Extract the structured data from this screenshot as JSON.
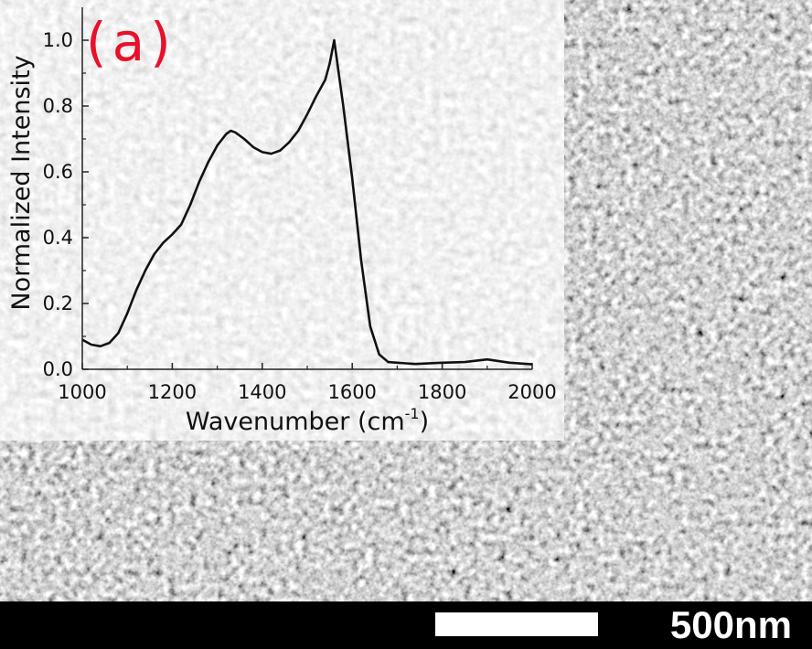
{
  "panel_label": "(a)",
  "scale_bar": {
    "label": "500nm"
  },
  "colors": {
    "panel_label": "#e8102a",
    "scale_strip": "#000000",
    "scale_bar": "#ffffff",
    "curve": "#111111"
  },
  "chart_data": {
    "type": "line",
    "xlabel": "Wavenumber (cm",
    "xlabel_sup": "-1",
    "xlabel_close": ")",
    "ylabel": "Normalized Intensity",
    "xlim": [
      1000,
      2000
    ],
    "ylim": [
      0,
      1.0
    ],
    "xticks": [
      1000,
      1200,
      1400,
      1600,
      1800,
      2000
    ],
    "yticks": [
      0.0,
      0.2,
      0.4,
      0.6,
      0.8,
      1.0
    ],
    "ytick_labels": [
      "0.0",
      "0.2",
      "0.4",
      "0.6",
      "0.8",
      "1.0"
    ],
    "grid": false,
    "series": [
      {
        "x": [
          1000,
          1020,
          1040,
          1060,
          1080,
          1100,
          1120,
          1140,
          1160,
          1180,
          1200,
          1220,
          1240,
          1260,
          1280,
          1300,
          1320,
          1330,
          1340,
          1360,
          1380,
          1400,
          1420,
          1440,
          1460,
          1480,
          1500,
          1520,
          1540,
          1550,
          1560,
          1570,
          1580,
          1600,
          1620,
          1640,
          1660,
          1680,
          1700,
          1720,
          1740,
          1800,
          1850,
          1900,
          1950,
          2000
        ],
        "y": [
          0.09,
          0.075,
          0.07,
          0.08,
          0.11,
          0.17,
          0.24,
          0.3,
          0.35,
          0.385,
          0.41,
          0.44,
          0.5,
          0.57,
          0.63,
          0.68,
          0.715,
          0.725,
          0.72,
          0.7,
          0.675,
          0.66,
          0.655,
          0.665,
          0.69,
          0.725,
          0.775,
          0.83,
          0.88,
          0.93,
          1.0,
          0.9,
          0.8,
          0.58,
          0.33,
          0.13,
          0.045,
          0.022,
          0.02,
          0.018,
          0.016,
          0.02,
          0.022,
          0.03,
          0.02,
          0.015
        ]
      }
    ]
  }
}
